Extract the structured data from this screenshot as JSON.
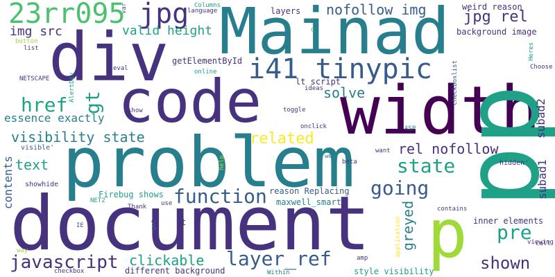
{
  "palette": {
    "c1": "#440154",
    "c2": "#46327e",
    "c3": "#365c8d",
    "c4": "#277f8e",
    "c5": "#1fa187",
    "c6": "#4ac16d",
    "c7": "#a0da39",
    "c8": "#fde725"
  },
  "words": [
    {
      "text": "document",
      "color": "c2"
    },
    {
      "text": "problem",
      "color": "c4"
    },
    {
      "text": "code",
      "color": "c2"
    },
    {
      "text": "Mainad",
      "color": "c4"
    },
    {
      "text": "div",
      "color": "c2"
    },
    {
      "text": "width",
      "color": "c1"
    },
    {
      "text": "pp",
      "color": "c5"
    },
    {
      "text": "p",
      "color": "c7"
    },
    {
      "text": "23rr095",
      "color": "c6"
    },
    {
      "text": "jpg",
      "color": "c2"
    },
    {
      "text": "i41 tinypic",
      "color": "c3"
    },
    {
      "text": "layer_ref",
      "color": "c3"
    },
    {
      "text": "javascript",
      "color": "c2"
    },
    {
      "text": "function",
      "color": "c3"
    },
    {
      "text": "state",
      "color": "c5"
    },
    {
      "text": "going",
      "color": "c3"
    },
    {
      "text": "href",
      "color": "c5"
    },
    {
      "text": "gt",
      "color": "c5"
    },
    {
      "text": "pre",
      "color": "c5"
    },
    {
      "text": "shown",
      "color": "c2"
    },
    {
      "text": "clickable",
      "color": "c5"
    },
    {
      "text": "visibility state",
      "color": "c4"
    },
    {
      "text": "related",
      "color": "c8"
    },
    {
      "text": "rel nofollow",
      "color": "c2"
    },
    {
      "text": "jpg rel",
      "color": "c2"
    },
    {
      "text": "nofollow img",
      "color": "c3"
    },
    {
      "text": "valid height",
      "color": "c5"
    },
    {
      "text": "img src",
      "color": "c2"
    },
    {
      "text": "solve",
      "color": "c4"
    },
    {
      "text": "essence exactly",
      "color": "c4"
    },
    {
      "text": "contents",
      "color": "c3"
    },
    {
      "text": "text",
      "color": "c5"
    },
    {
      "text": "subad1",
      "color": "c2"
    },
    {
      "text": "subad2",
      "color": "c2"
    },
    {
      "text": "greyed",
      "color": "c4"
    },
    {
      "text": "getElementById",
      "color": "c2"
    },
    {
      "text": "weird reason",
      "color": "c2"
    },
    {
      "text": "background image",
      "color": "c2"
    },
    {
      "text": "reason Replacing",
      "color": "c3"
    },
    {
      "text": "Firebug shows",
      "color": "c5"
    },
    {
      "text": "maxwell_smart",
      "color": "c4"
    },
    {
      "text": "inner elements",
      "color": "c2"
    },
    {
      "text": "different background",
      "color": "c2"
    },
    {
      "text": "style visibility",
      "color": "c5"
    },
    {
      "text": "lt script",
      "color": "c2"
    },
    {
      "text": "layers",
      "color": "c2"
    },
    {
      "text": "showhide",
      "color": "c2"
    },
    {
      "text": "visible'",
      "color": "c3"
    },
    {
      "text": "hidden'",
      "color": "c2"
    },
    {
      "text": "onclick",
      "color": "c2"
    },
    {
      "text": "Thank",
      "color": "c2"
    },
    {
      "text": "show",
      "color": "c2"
    },
    {
      "text": "toggle",
      "color": "c2"
    },
    {
      "text": "ideas",
      "color": "c2"
    },
    {
      "text": "online",
      "color": "c5"
    },
    {
      "text": "eval",
      "color": "c2"
    },
    {
      "text": "list",
      "color": "c2"
    },
    {
      "text": "button",
      "color": "c7"
    },
    {
      "text": "NETSCAPE",
      "color": "c2"
    },
    {
      "text": "AlertDiv",
      "color": "c5"
    },
    {
      "text": "var",
      "color": "c3"
    },
    {
      "text": "Columns",
      "color": "c5"
    },
    {
      "text": "language",
      "color": "c2"
    },
    {
      "text": "C",
      "color": "c6"
    },
    {
      "text": "Choose",
      "color": "c2"
    },
    {
      "text": "Heres",
      "color": "c5"
    },
    {
      "text": "checkboxlist",
      "color": "c3"
    },
    {
      "text": "ASP",
      "color": "c4"
    },
    {
      "text": "web",
      "color": "c4"
    },
    {
      "text": "beta",
      "color": "c2"
    },
    {
      "text": "want",
      "color": "c2"
    },
    {
      "text": "help",
      "color": "c7"
    },
    {
      "text": "NET2",
      "color": "c5"
    },
    {
      "text": "use",
      "color": "c2"
    },
    {
      "text": "lt",
      "color": "c2"
    },
    {
      "text": "got",
      "color": "c3"
    },
    {
      "text": "IE",
      "color": "c3"
    },
    {
      "text": "way",
      "color": "c7"
    },
    {
      "text": "checkbox",
      "color": "c2"
    },
    {
      "text": "Within",
      "color": "c4"
    },
    {
      "text": "amp",
      "color": "c2"
    },
    {
      "text": "application",
      "color": "c8"
    },
    {
      "text": "contains",
      "color": "c2"
    },
    {
      "text": "viewing",
      "color": "c2"
    },
    {
      "text": "call",
      "color": "c2"
    }
  ]
}
